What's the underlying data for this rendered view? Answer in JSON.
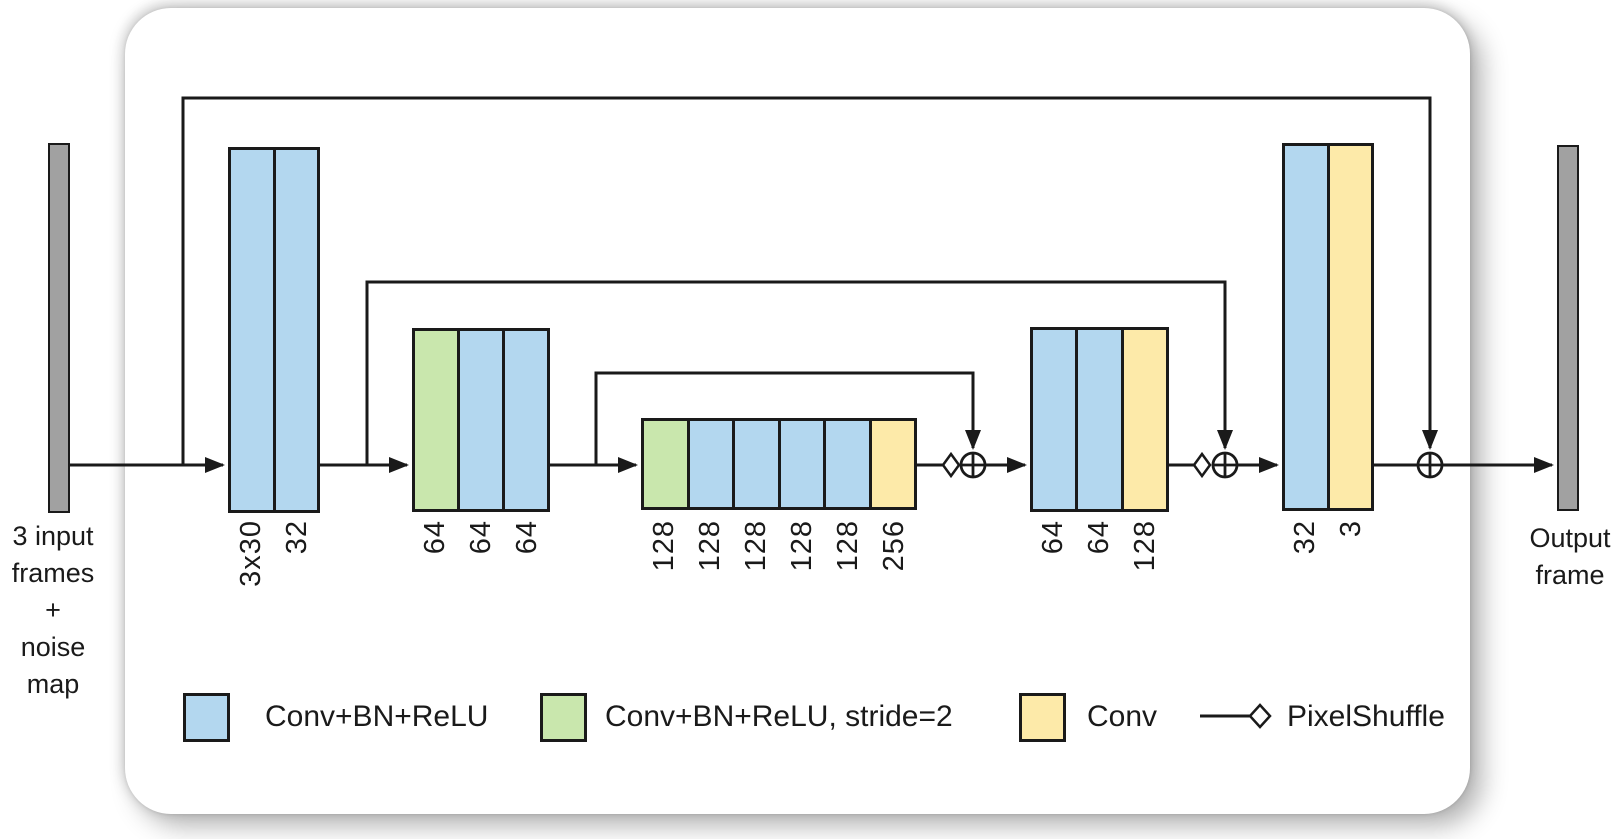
{
  "colors": {
    "blue": "#b3d7ef",
    "green": "#c9e7ad",
    "yellow": "#fdeaa9",
    "gray": "#a1a1a1",
    "line": "#1a1a1a",
    "card_bg": "#ffffff"
  },
  "io": {
    "input_label": "3 input\nframes\n+\nnoise\nmap",
    "output_label": "Output\nframe"
  },
  "blocks": [
    {
      "id": "encoder-block-1",
      "columns": [
        "blue",
        "blue"
      ],
      "labels": [
        "3x30",
        "32"
      ]
    },
    {
      "id": "encoder-block-2",
      "columns": [
        "green",
        "blue",
        "blue"
      ],
      "labels": [
        "64",
        "64",
        "64"
      ]
    },
    {
      "id": "bottleneck-block",
      "columns": [
        "green",
        "blue",
        "blue",
        "blue",
        "blue",
        "yellow"
      ],
      "labels": [
        "128",
        "128",
        "128",
        "128",
        "128",
        "256"
      ]
    },
    {
      "id": "decoder-block-1",
      "columns": [
        "blue",
        "blue",
        "yellow"
      ],
      "labels": [
        "64",
        "64",
        "128"
      ]
    },
    {
      "id": "decoder-block-2",
      "columns": [
        "blue",
        "yellow"
      ],
      "labels": [
        "32",
        "3"
      ]
    }
  ],
  "legend": {
    "items": [
      {
        "swatch": "blue",
        "label": "Conv+BN+ReLU"
      },
      {
        "swatch": "green",
        "label": "Conv+BN+ReLU, stride=2"
      },
      {
        "swatch": "yellow",
        "label": "Conv"
      },
      {
        "swatch": "pixelshuffle",
        "label": "PixelShuffle"
      }
    ]
  }
}
